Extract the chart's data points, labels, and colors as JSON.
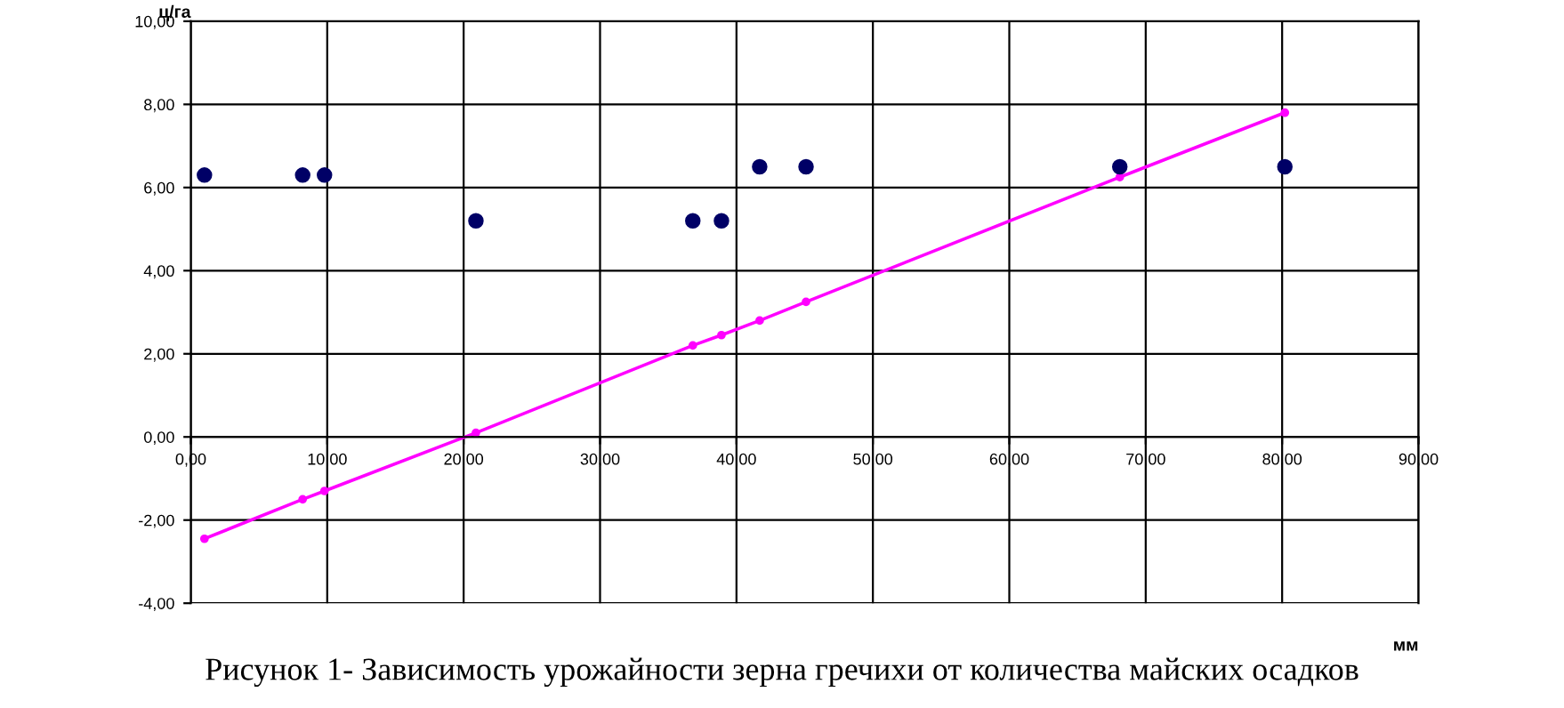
{
  "chart_data": {
    "type": "scatter",
    "xlabel": "мм",
    "ylabel": "ц/га",
    "annotations": [
      "Рисунок 1- Зависимость урожайности зерна гречихи от количества майских осадков"
    ],
    "xlim": [
      0,
      90
    ],
    "ylim": [
      -4,
      10
    ],
    "xticks": [
      {
        "value": 0,
        "label": "0,00"
      },
      {
        "value": 10,
        "label": "10,00"
      },
      {
        "value": 20,
        "label": "20,00"
      },
      {
        "value": 30,
        "label": "30,00"
      },
      {
        "value": 40,
        "label": "40,00"
      },
      {
        "value": 50,
        "label": "50,00"
      },
      {
        "value": 60,
        "label": "60,00"
      },
      {
        "value": 70,
        "label": "70,00"
      },
      {
        "value": 80,
        "label": "80,00"
      },
      {
        "value": 90,
        "label": "90,00"
      }
    ],
    "yticks": [
      {
        "value": -4,
        "label": "-4,00"
      },
      {
        "value": -2,
        "label": "-2,00"
      },
      {
        "value": 0,
        "label": "0,00"
      },
      {
        "value": 2,
        "label": "2,00"
      },
      {
        "value": 4,
        "label": "4,00"
      },
      {
        "value": 6,
        "label": "6,00"
      },
      {
        "value": 8,
        "label": "8,00"
      },
      {
        "value": 10,
        "label": "10,00"
      }
    ],
    "grid": true,
    "marker": "circle",
    "series": [
      {
        "color": "#000066",
        "x": [
          1.0,
          8.2,
          9.8,
          20.9,
          36.8,
          38.9,
          41.7,
          45.1,
          68.1,
          80.2
        ],
        "values": [
          6.3,
          6.3,
          6.3,
          5.2,
          5.2,
          5.2,
          6.5,
          6.5,
          6.5,
          6.5
        ]
      },
      {
        "type": "line",
        "color": "#ff00ff",
        "x": [
          1.0,
          8.2,
          9.8,
          20.9,
          36.8,
          38.9,
          41.7,
          45.1,
          68.1,
          80.2
        ],
        "values": [
          -2.45,
          -1.5,
          -1.3,
          0.1,
          2.2,
          2.45,
          2.8,
          3.25,
          6.25,
          7.8
        ]
      }
    ]
  }
}
